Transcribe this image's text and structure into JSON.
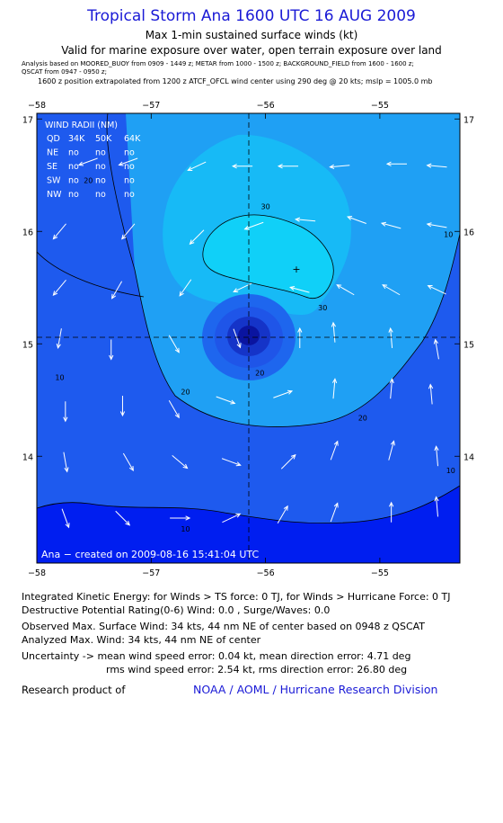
{
  "header": {
    "title": "Tropical Storm Ana 1600 UTC 16 AUG 2009",
    "subtitle1": "Max 1-min sustained surface winds (kt)",
    "subtitle2": "Valid for marine exposure over water, open terrain exposure over land",
    "analysis_line1": "Analysis based on  MOORED_BUOY from 0909 - 1449 z;   METAR from 1000 - 1500 z;   BACKGROUND_FIELD from 1600 - 1600 z;",
    "analysis_line2": "QSCAT from 0947 - 0950 z;",
    "position_line": "1600 z position extrapolated from 1200 z ATCF_OFCL wind center using 290 deg @ 20 kts; mslp = 1005.0 mb"
  },
  "chart_data": {
    "type": "heatmap",
    "title": "Tropical Storm Ana 1600 UTC 16 AUG 2009",
    "xlim": [
      -58.0,
      -54.3
    ],
    "ylim": [
      13.05,
      17.05
    ],
    "x_ticks": [
      -58,
      -57,
      -56,
      -55
    ],
    "y_ticks": [
      17,
      16,
      15,
      14
    ],
    "x_tick_labels": [
      "−58",
      "−57",
      "−56",
      "−55"
    ],
    "y_tick_labels": [
      "17",
      "16",
      "15",
      "14"
    ],
    "center": {
      "lon": -56.05,
      "lat": 15.05
    },
    "max_wind_marker": {
      "lon": -55.62,
      "lat": 15.68
    },
    "contour_labels": [
      {
        "text": "30",
        "lon": -56.0,
        "lat": 16.2
      },
      {
        "text": "30",
        "lon": -55.5,
        "lat": 15.3
      },
      {
        "text": "20",
        "lon": -57.55,
        "lat": 16.43
      },
      {
        "text": "20",
        "lon": -56.7,
        "lat": 14.55
      },
      {
        "text": "20",
        "lon": -56.05,
        "lat": 14.72
      },
      {
        "text": "20",
        "lon": -55.15,
        "lat": 14.32
      },
      {
        "text": "10",
        "lon": -54.4,
        "lat": 15.95
      },
      {
        "text": "10",
        "lon": -57.8,
        "lat": 14.68
      },
      {
        "text": "10",
        "lon": -56.7,
        "lat": 13.33
      },
      {
        "text": "10",
        "lon": -54.38,
        "lat": 13.85
      }
    ],
    "wind_arrows": [
      {
        "lon": -57.55,
        "lat": 16.62,
        "dir": 200
      },
      {
        "lon": -57.2,
        "lat": 16.62,
        "dir": 200
      },
      {
        "lon": -56.6,
        "lat": 16.58,
        "dir": 205
      },
      {
        "lon": -56.2,
        "lat": 16.58,
        "dir": 180
      },
      {
        "lon": -55.8,
        "lat": 16.58,
        "dir": 180
      },
      {
        "lon": -55.35,
        "lat": 16.58,
        "dir": 185
      },
      {
        "lon": -54.85,
        "lat": 16.6,
        "dir": 180
      },
      {
        "lon": -54.5,
        "lat": 16.58,
        "dir": 175
      },
      {
        "lon": -57.8,
        "lat": 16.0,
        "dir": 230
      },
      {
        "lon": -57.2,
        "lat": 16.0,
        "dir": 230
      },
      {
        "lon": -56.6,
        "lat": 15.95,
        "dir": 225
      },
      {
        "lon": -56.1,
        "lat": 16.05,
        "dir": 200
      },
      {
        "lon": -55.65,
        "lat": 16.1,
        "dir": 175
      },
      {
        "lon": -55.2,
        "lat": 16.1,
        "dir": 160
      },
      {
        "lon": -54.9,
        "lat": 16.05,
        "dir": 165
      },
      {
        "lon": -54.5,
        "lat": 16.05,
        "dir": 170
      },
      {
        "lon": -57.8,
        "lat": 15.5,
        "dir": 230
      },
      {
        "lon": -57.3,
        "lat": 15.48,
        "dir": 240
      },
      {
        "lon": -56.7,
        "lat": 15.5,
        "dir": 235
      },
      {
        "lon": -56.2,
        "lat": 15.5,
        "dir": 205
      },
      {
        "lon": -55.7,
        "lat": 15.48,
        "dir": 165
      },
      {
        "lon": -55.3,
        "lat": 15.48,
        "dir": 150
      },
      {
        "lon": -54.9,
        "lat": 15.48,
        "dir": 150
      },
      {
        "lon": -54.5,
        "lat": 15.48,
        "dir": 155
      },
      {
        "lon": -57.8,
        "lat": 15.05,
        "dir": 260
      },
      {
        "lon": -57.35,
        "lat": 14.95,
        "dir": 270
      },
      {
        "lon": -56.8,
        "lat": 15.0,
        "dir": 300
      },
      {
        "lon": -56.25,
        "lat": 15.05,
        "dir": 290
      },
      {
        "lon": -55.7,
        "lat": 15.05,
        "dir": 90
      },
      {
        "lon": -55.4,
        "lat": 15.1,
        "dir": 95
      },
      {
        "lon": -54.9,
        "lat": 15.05,
        "dir": 95
      },
      {
        "lon": -54.5,
        "lat": 14.95,
        "dir": 100
      },
      {
        "lon": -57.75,
        "lat": 14.4,
        "dir": 270
      },
      {
        "lon": -57.25,
        "lat": 14.45,
        "dir": 270
      },
      {
        "lon": -56.8,
        "lat": 14.42,
        "dir": 300
      },
      {
        "lon": -56.35,
        "lat": 14.5,
        "dir": 340
      },
      {
        "lon": -55.85,
        "lat": 14.55,
        "dir": 20
      },
      {
        "lon": -55.4,
        "lat": 14.6,
        "dir": 85
      },
      {
        "lon": -54.9,
        "lat": 14.6,
        "dir": 85
      },
      {
        "lon": -54.55,
        "lat": 14.55,
        "dir": 95
      },
      {
        "lon": -57.75,
        "lat": 13.95,
        "dir": 280
      },
      {
        "lon": -57.2,
        "lat": 13.95,
        "dir": 300
      },
      {
        "lon": -56.75,
        "lat": 13.95,
        "dir": 320
      },
      {
        "lon": -56.3,
        "lat": 13.95,
        "dir": 340
      },
      {
        "lon": -55.8,
        "lat": 13.95,
        "dir": 45
      },
      {
        "lon": -55.4,
        "lat": 14.05,
        "dir": 70
      },
      {
        "lon": -54.9,
        "lat": 14.05,
        "dir": 75
      },
      {
        "lon": -54.5,
        "lat": 14.0,
        "dir": 95
      },
      {
        "lon": -57.75,
        "lat": 13.45,
        "dir": 290
      },
      {
        "lon": -57.25,
        "lat": 13.45,
        "dir": 315
      },
      {
        "lon": -56.75,
        "lat": 13.45,
        "dir": 0
      },
      {
        "lon": -56.3,
        "lat": 13.45,
        "dir": 25
      },
      {
        "lon": -55.85,
        "lat": 13.48,
        "dir": 60
      },
      {
        "lon": -55.4,
        "lat": 13.5,
        "dir": 70
      },
      {
        "lon": -54.9,
        "lat": 13.5,
        "dir": 90
      },
      {
        "lon": -54.5,
        "lat": 13.55,
        "dir": 95
      }
    ],
    "wind_radii_table": {
      "title": "WIND RADII (NM)",
      "header": [
        "QD",
        "34K",
        "50K",
        "64K"
      ],
      "rows": [
        [
          "NE",
          "no",
          "no",
          "no"
        ],
        [
          "SE",
          "no",
          "no",
          "no"
        ],
        [
          "SW",
          "no",
          "no",
          "no"
        ],
        [
          "NW",
          "no",
          "no",
          "no"
        ]
      ]
    },
    "created_label": "Ana − created on 2009-08-16 15:41:04 UTC",
    "colors": {
      "frame": "#000000",
      "lt10": "#001ef0",
      "b10_20": "#1e5aee",
      "b20_30": "#1fa0f4",
      "gt30": "#10d0f8",
      "core1": "#1e66ee",
      "core2": "#1f55e8",
      "core3": "#1534c8",
      "core4": "#0a14a0",
      "arrow": "#ffffff"
    }
  },
  "footer": {
    "ike": "Integrated Kinetic Energy:  for Winds > TS force: 0 TJ,  for Winds > Hurricane Force: 0 TJ",
    "dpr": "Destructive Potential Rating(0-6)   Wind: 0.0 , Surge/Waves: 0.0",
    "observed": "Observed Max. Surface Wind: 34 kts, 44 nm NE of center based on 0948 z QSCAT",
    "analyzed": "Analyzed Max. Wind: 34 kts, 44 nm NE of center",
    "uncertainty1": "Uncertainty -> mean wind speed error: 0.04 kt,   mean direction error: 4.71 deg",
    "uncertainty2": "rms wind speed error: 2.54 kt,   rms direction error: 26.80 deg",
    "research": "Research product of",
    "noaa": "NOAA / AOML / Hurricane Research Division"
  }
}
